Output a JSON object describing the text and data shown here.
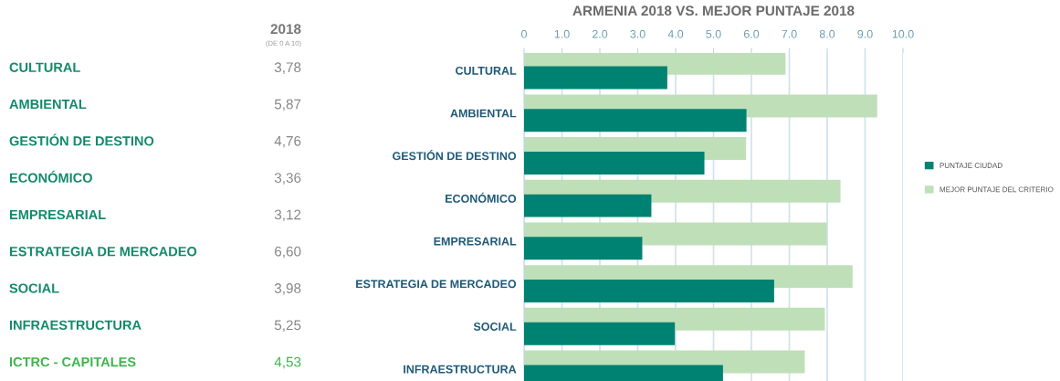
{
  "chart_data": [
    {
      "type": "other",
      "title": "2018",
      "subtitle": "(DE 0 A 10)",
      "categories": [
        "CULTURAL",
        "AMBIENTAL",
        "GESTIÓN DE DESTINO",
        "ECONÓMICO",
        "EMPRESARIAL",
        "ESTRATEGIA DE MERCADEO",
        "SOCIAL",
        "INFRAESTRUCTURA",
        "ICTRC - CAPITALES"
      ],
      "value_labels": [
        "3,78",
        "5,87",
        "4,76",
        "3,36",
        "3,12",
        "6,60",
        "3,98",
        "5,25",
        "4,53"
      ],
      "colors": [
        "#138a6c",
        "#138a6c",
        "#138a6c",
        "#138a6c",
        "#138a6c",
        "#138a6c",
        "#138a6c",
        "#138a6c",
        "#3db54a"
      ],
      "data_labels": true
    },
    {
      "type": "bar",
      "orientation": "horizontal",
      "title": "ARMENIA 2018 VS. MEJOR PUNTAJE 2018",
      "categories": [
        "CULTURAL",
        "AMBIENTAL",
        "GESTIÓN DE DESTINO",
        "ECONÓMICO",
        "EMPRESARIAL",
        "ESTRATEGIA DE MERCADEO",
        "SOCIAL",
        "INFRAESTRUCTURA"
      ],
      "series": [
        {
          "name": "MEJOR PUNTAJE DEL CRITERIO",
          "color": "#bfdfb9",
          "values": [
            6.9,
            9.32,
            5.86,
            8.35,
            7.99,
            8.67,
            7.94,
            7.41
          ]
        },
        {
          "name": "PUNTAJE CIUDAD",
          "color": "#008272",
          "values": [
            3.78,
            5.87,
            4.76,
            3.36,
            3.12,
            6.6,
            3.98,
            5.25
          ]
        }
      ],
      "xlim": [
        0,
        10
      ],
      "xticks": [
        0,
        {
          "value": 1,
          "label": "1.0"
        },
        {
          "value": 2,
          "label": "2.0"
        },
        {
          "value": 3,
          "label": "3.0"
        },
        {
          "value": 4,
          "label": "4.0"
        },
        {
          "value": 5,
          "label": "5.0"
        },
        {
          "value": 6,
          "label": "6.0"
        },
        {
          "value": 7,
          "label": "7.0"
        },
        {
          "value": 8,
          "label": "8.0"
        },
        {
          "value": 9,
          "label": "9.0"
        },
        {
          "value": 10,
          "label": "10.0"
        }
      ],
      "grid": "x",
      "legend": "right"
    }
  ]
}
